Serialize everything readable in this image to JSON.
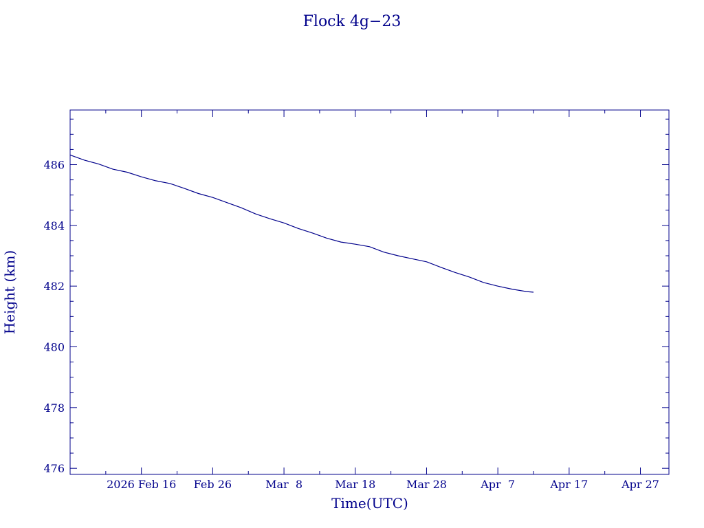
{
  "chart_data": {
    "type": "line",
    "title": "Flock 4g−23",
    "xlabel": "Time(UTC)",
    "ylabel": "Height (km)",
    "ylim": [
      475.8,
      487.8
    ],
    "xlim": [
      "2026-02-06",
      "2026-05-01"
    ],
    "y_ticks": [
      476,
      478,
      480,
      482,
      484,
      486
    ],
    "x_ticks": [
      {
        "date": "2026-02-16",
        "label": "2026 Feb 16"
      },
      {
        "date": "2026-02-26",
        "label": "Feb 26"
      },
      {
        "date": "2026-03-08",
        "label": "Mar  8"
      },
      {
        "date": "2026-03-18",
        "label": "Mar 18"
      },
      {
        "date": "2026-03-28",
        "label": "Mar 28"
      },
      {
        "date": "2026-04-07",
        "label": "Apr  7"
      },
      {
        "date": "2026-04-17",
        "label": "Apr 17"
      },
      {
        "date": "2026-04-27",
        "label": "Apr 27"
      }
    ],
    "grid": false,
    "color": "#00008b",
    "series": [
      {
        "x": [
          "2026-02-06",
          "2026-02-08",
          "2026-02-10",
          "2026-02-12",
          "2026-02-14",
          "2026-02-16",
          "2026-02-18",
          "2026-02-20",
          "2026-02-22",
          "2026-02-24",
          "2026-02-26",
          "2026-02-28",
          "2026-03-02",
          "2026-03-04",
          "2026-03-06",
          "2026-03-08",
          "2026-03-10",
          "2026-03-12",
          "2026-03-14",
          "2026-03-16",
          "2026-03-18",
          "2026-03-20",
          "2026-03-22",
          "2026-03-24",
          "2026-03-26",
          "2026-03-28",
          "2026-03-30",
          "2026-04-01",
          "2026-04-03",
          "2026-04-05",
          "2026-04-07",
          "2026-04-09",
          "2026-04-11",
          "2026-04-12"
        ],
        "values": [
          486.32,
          486.15,
          486.02,
          485.85,
          485.75,
          485.6,
          485.47,
          485.38,
          485.22,
          485.05,
          484.92,
          484.75,
          484.58,
          484.38,
          484.22,
          484.08,
          483.9,
          483.75,
          483.58,
          483.45,
          483.38,
          483.3,
          483.12,
          483.0,
          482.9,
          482.8,
          482.62,
          482.45,
          482.3,
          482.12,
          482.0,
          481.9,
          481.82,
          481.8
        ]
      }
    ]
  }
}
